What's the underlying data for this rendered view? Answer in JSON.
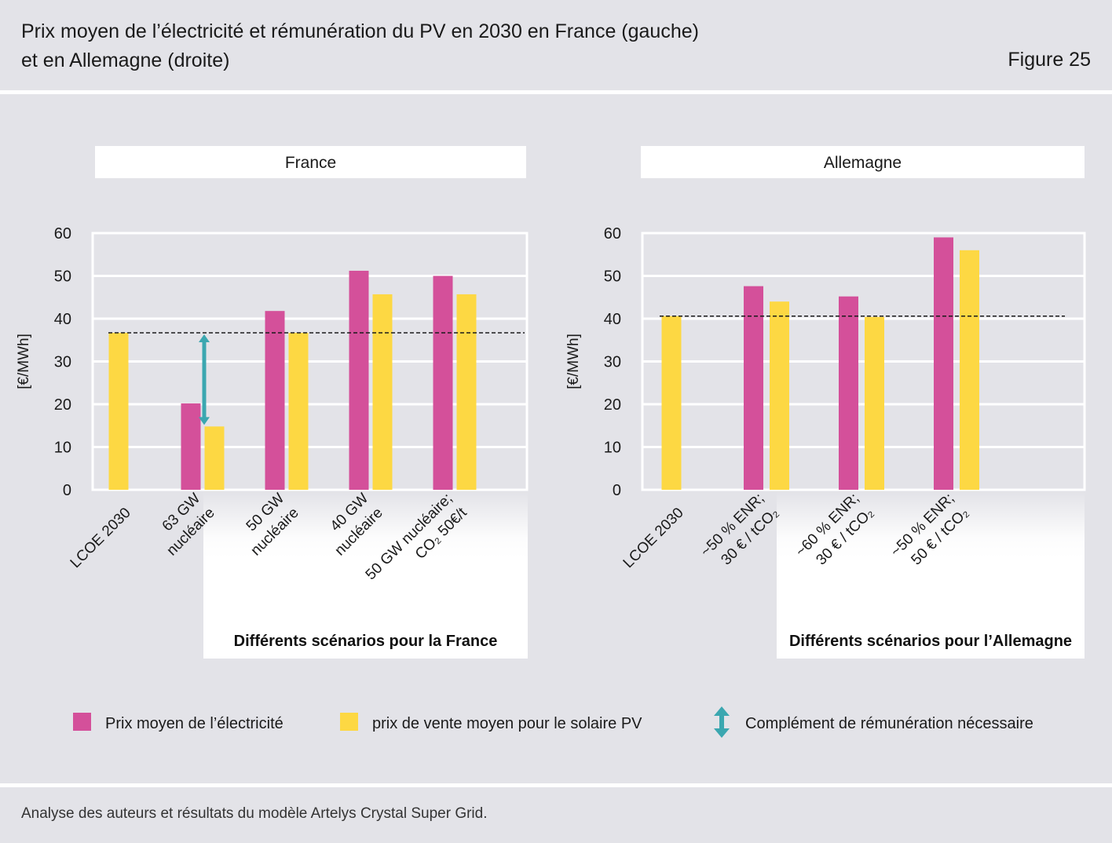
{
  "header": {
    "title_line1": "Prix moyen de l’électricité et rémunération du PV en 2030 en France (gauche)",
    "title_line2": "et en Allemagne (droite)",
    "figure": "Figure 25"
  },
  "footer": {
    "source": "Analyse des auteurs et résultats du modèle Artelys Crystal Super Grid."
  },
  "colors": {
    "price": "#d4509a",
    "pv": "#fdd843",
    "arrow": "#3ba7b0"
  },
  "legend": {
    "price": "Prix moyen de l’électricité",
    "pv": "prix de vente moyen pour le solaire PV",
    "arrow": "Complément de rémunération nécessaire"
  },
  "chart_data": [
    {
      "type": "bar",
      "title": "France",
      "ylabel": "[€/MWh]",
      "xlabel": "Différents scénarios pour la France",
      "ylim": [
        0,
        60
      ],
      "yticks": [
        0,
        10,
        20,
        30,
        40,
        50,
        60
      ],
      "reference_line": 36.7,
      "categories": [
        [
          "LCOE 2030"
        ],
        [
          "63 GW",
          "nucléaire"
        ],
        [
          "50 GW",
          "nucléaire"
        ],
        [
          "40 GW",
          "nucléaire"
        ],
        [
          "50 GW nucléaire;",
          "CO₂ 50€/t"
        ]
      ],
      "series": [
        {
          "name": "Prix moyen de l’électricité",
          "values": [
            null,
            20.2,
            41.8,
            51.2,
            50.0
          ]
        },
        {
          "name": "prix de vente moyen pour le solaire PV",
          "values": [
            36.7,
            14.8,
            36.7,
            45.7,
            45.7
          ]
        }
      ],
      "arrow": {
        "category_index": 1,
        "from": 14.8,
        "to": 36.7
      }
    },
    {
      "type": "bar",
      "title": "Allemagne",
      "ylabel": "[€/MWh]",
      "xlabel": "Différents scénarios pour l’Allemagne",
      "ylim": [
        0,
        60
      ],
      "yticks": [
        0,
        10,
        20,
        30,
        40,
        50,
        60
      ],
      "reference_line": 40.6,
      "categories": [
        [
          "LCOE 2030"
        ],
        [
          "~50 % ENR;",
          "30 € / tCO₂"
        ],
        [
          "~60 % ENR;",
          "30 € / tCO₂"
        ],
        [
          "~50 % ENR;",
          "50 € / tCO₂"
        ]
      ],
      "series": [
        {
          "name": "Prix moyen de l’électricité",
          "values": [
            null,
            47.6,
            45.2,
            59.0
          ]
        },
        {
          "name": "prix de vente moyen pour le solaire PV",
          "values": [
            40.6,
            44.0,
            40.4,
            56.0
          ]
        }
      ]
    }
  ]
}
